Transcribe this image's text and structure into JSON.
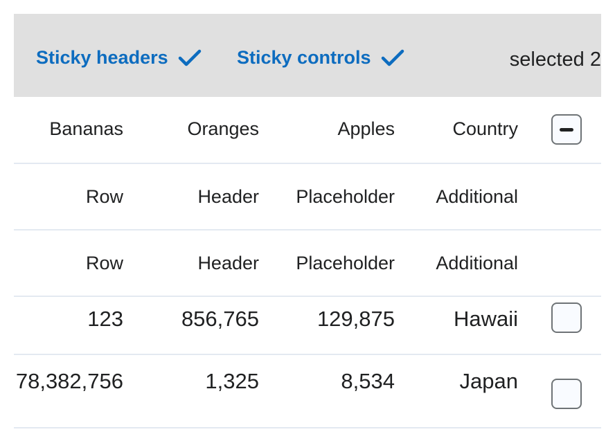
{
  "controls": {
    "sticky_headers_label": "Sticky headers",
    "sticky_controls_label": "Sticky controls",
    "selected_text": "selected 2",
    "accent_color": "#0d6cbf",
    "bar_color": "#e0e0e0"
  },
  "table": {
    "columns": [
      "Bananas",
      "Oranges",
      "Apples",
      "Country"
    ],
    "header_rows": [
      [
        "Row",
        "Header",
        "Placeholder",
        "Additional"
      ],
      [
        "Row",
        "Header",
        "Placeholder",
        "Additional"
      ]
    ],
    "rows": [
      {
        "cells": [
          "123",
          "856,765",
          "129,875",
          "Hawaii"
        ],
        "selected": false
      },
      {
        "cells": [
          "78,382,756",
          "1,325",
          "8,534",
          "Japan"
        ],
        "selected": false
      }
    ],
    "select_all_state": "indeterminate"
  }
}
